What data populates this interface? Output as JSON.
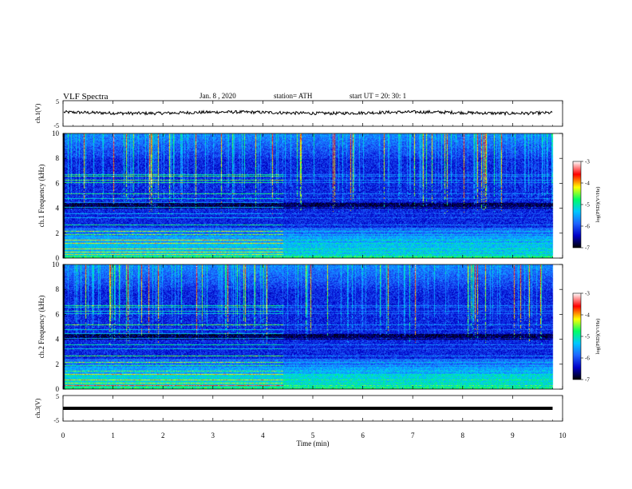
{
  "header": {
    "title": "VLF  Spectra",
    "date": "Jan.  8  , 2020",
    "station": "station= ATH",
    "start_time": "start  UT  =    20: 30: 1"
  },
  "chart_data": [
    {
      "type": "line",
      "ylabel": "ch.1(V)",
      "ylim": [
        -5,
        5
      ],
      "yticks": [
        "5",
        "-5"
      ],
      "xlim": [
        0,
        10
      ],
      "description_level": 0.3
    },
    {
      "type": "heatmap",
      "ylabel": "ch.1  Frequency  (kHz)",
      "ylim": [
        0,
        10
      ],
      "yticks": [
        "0",
        "2",
        "4",
        "6",
        "8",
        "10"
      ],
      "colorbar": {
        "label": "log(PSD)(V²/Hz)",
        "ticks": [
          "-3",
          "-4",
          "-5",
          "-6",
          "-7"
        ],
        "range": [
          -7,
          -3
        ]
      }
    },
    {
      "type": "heatmap",
      "ylabel": "ch.2  Frequency  (kHz)",
      "ylim": [
        0,
        10
      ],
      "yticks": [
        "0",
        "2",
        "4",
        "6",
        "8",
        "10"
      ],
      "colorbar": {
        "label": "log(PSD)(V²/Hz)",
        "ticks": [
          "-3",
          "-4",
          "-5",
          "-6",
          "-7"
        ],
        "range": [
          -7,
          -3
        ]
      }
    },
    {
      "type": "line",
      "ylabel": "ch.3(V)",
      "ylim": [
        -5,
        5
      ],
      "yticks": [
        "5",
        "-5"
      ],
      "level": 0.0
    }
  ],
  "xaxis": {
    "label": "Time  (min)",
    "range": [
      0,
      10
    ],
    "ticks": [
      "0",
      "1",
      "2",
      "3",
      "4",
      "5",
      "6",
      "7",
      "8",
      "9",
      "10"
    ],
    "data_end": 9.8
  },
  "colors": {
    "background": "#00002a",
    "colormap": [
      "#000000",
      "#0000c8",
      "#1e64ff",
      "#00c8ff",
      "#00ff64",
      "#ffff00",
      "#ff0000",
      "#ffffff"
    ]
  }
}
